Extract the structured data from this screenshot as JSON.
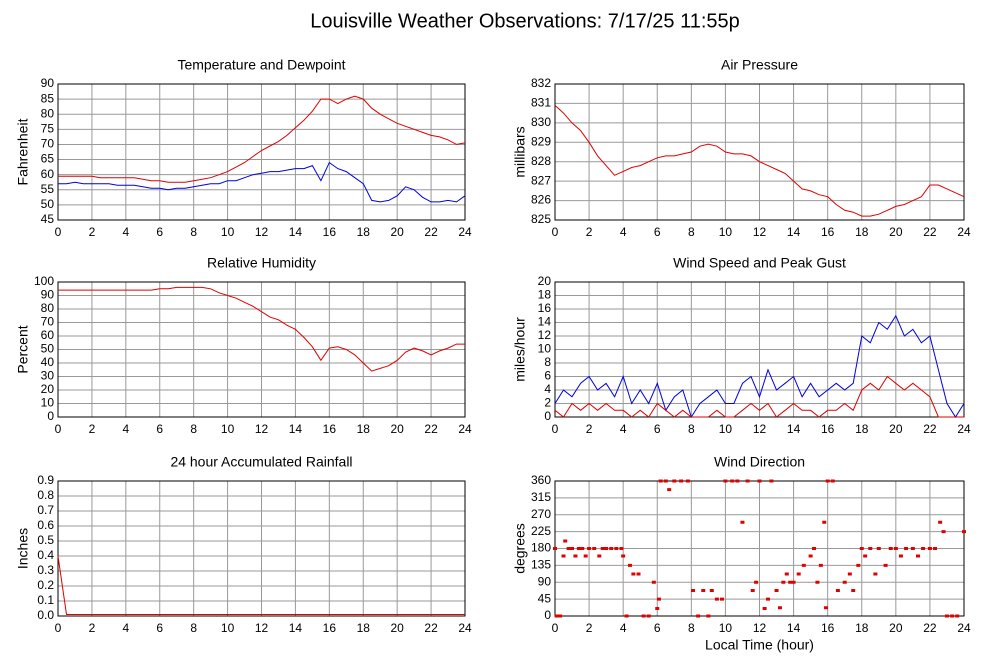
{
  "title": "Louisville Weather Observations: 7/17/25 11:55p",
  "chart_data": [
    {
      "type": "line",
      "title": "Temperature and Dewpoint",
      "ylabel": "Fahrenheit",
      "x": [
        0,
        0.5,
        1,
        1.5,
        2,
        2.5,
        3,
        3.5,
        4,
        4.5,
        5,
        5.5,
        6,
        6.5,
        7,
        7.5,
        8,
        8.5,
        9,
        9.5,
        10,
        10.5,
        11,
        11.5,
        12,
        12.5,
        13,
        13.5,
        14,
        14.5,
        15,
        15.5,
        16,
        16.5,
        17,
        17.5,
        18,
        18.5,
        19,
        19.5,
        20,
        20.5,
        21,
        21.5,
        22,
        22.5,
        23,
        23.5,
        24
      ],
      "series": [
        {
          "name": "Temperature",
          "color": "#e00000",
          "values": [
            59.5,
            59.5,
            59.5,
            59.5,
            59.5,
            59,
            59,
            59,
            59,
            59,
            58.5,
            58,
            58,
            57.5,
            57.5,
            57.5,
            58,
            58.5,
            59,
            60,
            61,
            62.5,
            64,
            66,
            68,
            69.5,
            71,
            73,
            75.5,
            78,
            81,
            85,
            85,
            83.5,
            85,
            86,
            85,
            82,
            80,
            78.5,
            77,
            76,
            75,
            74,
            73,
            72.5,
            71.5,
            70,
            70.5
          ]
        },
        {
          "name": "Dewpoint",
          "color": "#0000e0",
          "values": [
            57,
            57,
            57.5,
            57,
            57,
            57,
            57,
            56.5,
            56.5,
            56.5,
            56,
            55.5,
            55.5,
            55,
            55.5,
            55.5,
            56,
            56.5,
            57,
            57,
            58,
            58,
            59,
            60,
            60.5,
            61,
            61,
            61.5,
            62,
            62,
            63,
            58,
            64,
            62,
            61,
            59,
            57,
            51.5,
            51,
            51.5,
            53,
            56,
            55,
            52.5,
            51,
            51,
            51.5,
            51,
            53
          ]
        }
      ],
      "xlim": [
        0,
        24
      ],
      "xticks": [
        0,
        2,
        4,
        6,
        8,
        10,
        12,
        14,
        16,
        18,
        20,
        22,
        24
      ],
      "ylim": [
        45,
        90
      ],
      "yticks": [
        45,
        50,
        55,
        60,
        65,
        70,
        75,
        80,
        85,
        90
      ]
    },
    {
      "type": "line",
      "title": "Air Pressure",
      "ylabel": "millibars",
      "x": [
        0,
        0.5,
        1,
        1.5,
        2,
        2.5,
        3,
        3.5,
        4,
        4.5,
        5,
        5.5,
        6,
        6.5,
        7,
        7.5,
        8,
        8.5,
        9,
        9.5,
        10,
        10.5,
        11,
        11.5,
        12,
        12.5,
        13,
        13.5,
        14,
        14.5,
        15,
        15.5,
        16,
        16.5,
        17,
        17.5,
        18,
        18.5,
        19,
        19.5,
        20,
        20.5,
        21,
        21.5,
        22,
        22.5,
        23,
        23.5,
        24
      ],
      "series": [
        {
          "name": "Pressure",
          "color": "#e00000",
          "values": [
            830.9,
            830.5,
            830,
            829.6,
            829,
            828.3,
            827.8,
            827.3,
            827.5,
            827.7,
            827.8,
            828,
            828.2,
            828.3,
            828.3,
            828.4,
            828.5,
            828.8,
            828.9,
            828.8,
            828.5,
            828.4,
            828.4,
            828.3,
            828,
            827.8,
            827.6,
            827.4,
            827,
            826.6,
            826.5,
            826.3,
            826.2,
            825.8,
            825.5,
            825.4,
            825.2,
            825.2,
            825.3,
            825.5,
            825.7,
            825.8,
            826,
            826.2,
            826.8,
            826.8,
            826.6,
            826.4,
            826.2
          ]
        }
      ],
      "xlim": [
        0,
        24
      ],
      "xticks": [
        0,
        2,
        4,
        6,
        8,
        10,
        12,
        14,
        16,
        18,
        20,
        22,
        24
      ],
      "ylim": [
        825,
        832
      ],
      "yticks": [
        825,
        826,
        827,
        828,
        829,
        830,
        831,
        832
      ]
    },
    {
      "type": "line",
      "title": "Relative Humidity",
      "ylabel": "Percent",
      "x": [
        0,
        0.5,
        1,
        1.5,
        2,
        2.5,
        3,
        3.5,
        4,
        4.5,
        5,
        5.5,
        6,
        6.5,
        7,
        7.5,
        8,
        8.5,
        9,
        9.5,
        10,
        10.5,
        11,
        11.5,
        12,
        12.5,
        13,
        13.5,
        14,
        14.5,
        15,
        15.5,
        16,
        16.5,
        17,
        17.5,
        18,
        18.5,
        19,
        19.5,
        20,
        20.5,
        21,
        21.5,
        22,
        22.5,
        23,
        23.5,
        24
      ],
      "series": [
        {
          "name": "Humidity",
          "color": "#e00000",
          "values": [
            94,
            94,
            94,
            94,
            94,
            94,
            94,
            94,
            94,
            94,
            94,
            94,
            95,
            95,
            96,
            96,
            96,
            96,
            95,
            92,
            90,
            88,
            85,
            82,
            78,
            74,
            72,
            68,
            65,
            59,
            52,
            42,
            51,
            52,
            50,
            46,
            40,
            34,
            36,
            38,
            42,
            48,
            51,
            49,
            46,
            49,
            51,
            54,
            54
          ]
        }
      ],
      "xlim": [
        0,
        24
      ],
      "xticks": [
        0,
        2,
        4,
        6,
        8,
        10,
        12,
        14,
        16,
        18,
        20,
        22,
        24
      ],
      "ylim": [
        0,
        100
      ],
      "yticks": [
        0,
        10,
        20,
        30,
        40,
        50,
        60,
        70,
        80,
        90,
        100
      ]
    },
    {
      "type": "line",
      "title": "Wind Speed and Peak Gust",
      "ylabel": "miles/hour",
      "x": [
        0,
        0.5,
        1,
        1.5,
        2,
        2.5,
        3,
        3.5,
        4,
        4.5,
        5,
        5.5,
        6,
        6.5,
        7,
        7.5,
        8,
        8.5,
        9,
        9.5,
        10,
        10.5,
        11,
        11.5,
        12,
        12.5,
        13,
        13.5,
        14,
        14.5,
        15,
        15.5,
        16,
        16.5,
        17,
        17.5,
        18,
        18.5,
        19,
        19.5,
        20,
        20.5,
        21,
        21.5,
        22,
        22.5,
        23,
        23.5,
        24
      ],
      "series": [
        {
          "name": "Peak Gust",
          "color": "#0000e0",
          "values": [
            2,
            4,
            3,
            5,
            6,
            4,
            5,
            3,
            6,
            2,
            4,
            2,
            5,
            1,
            3,
            4,
            0,
            2,
            3,
            4,
            2,
            2,
            5,
            6,
            3,
            7,
            4,
            5,
            6,
            3,
            5,
            3,
            4,
            5,
            4,
            5,
            12,
            11,
            14,
            13,
            15,
            12,
            13,
            11,
            12,
            7,
            2,
            0,
            2
          ]
        },
        {
          "name": "Wind Speed",
          "color": "#e00000",
          "values": [
            1,
            0,
            2,
            1,
            2,
            1,
            2,
            1,
            1,
            0,
            1,
            0,
            2,
            1,
            0,
            1,
            0,
            0,
            0,
            1,
            0,
            0,
            1,
            2,
            1,
            2,
            0,
            1,
            2,
            1,
            1,
            0,
            1,
            1,
            2,
            1,
            4,
            5,
            4,
            6,
            5,
            4,
            5,
            4,
            3,
            0,
            0,
            0,
            0
          ]
        }
      ],
      "xlim": [
        0,
        24
      ],
      "xticks": [
        0,
        2,
        4,
        6,
        8,
        10,
        12,
        14,
        16,
        18,
        20,
        22,
        24
      ],
      "ylim": [
        0,
        20
      ],
      "yticks": [
        0,
        2,
        4,
        6,
        8,
        10,
        12,
        14,
        16,
        18,
        20
      ]
    },
    {
      "type": "line",
      "title": "24 hour Accumulated Rainfall",
      "ylabel": "Inches",
      "x": [
        0,
        0.5,
        1,
        1.5,
        2,
        2.5,
        3,
        3.5,
        4,
        4.5,
        5,
        5.5,
        6,
        6.5,
        7,
        7.5,
        8,
        8.5,
        9,
        9.5,
        10,
        10.5,
        11,
        11.5,
        12,
        12.5,
        13,
        13.5,
        14,
        14.5,
        15,
        15.5,
        16,
        16.5,
        17,
        17.5,
        18,
        18.5,
        19,
        19.5,
        20,
        20.5,
        21,
        21.5,
        22,
        22.5,
        23,
        23.5,
        24
      ],
      "series": [
        {
          "name": "Rainfall",
          "color": "#e00000",
          "values": [
            0.4,
            0.01,
            0.01,
            0.01,
            0.01,
            0.01,
            0.01,
            0.01,
            0.01,
            0.01,
            0.01,
            0.01,
            0.01,
            0.01,
            0.01,
            0.01,
            0.01,
            0.01,
            0.01,
            0.01,
            0.01,
            0.01,
            0.01,
            0.01,
            0.01,
            0.01,
            0.01,
            0.01,
            0.01,
            0.01,
            0.01,
            0.01,
            0.01,
            0.01,
            0.01,
            0.01,
            0.01,
            0.01,
            0.01,
            0.01,
            0.01,
            0.01,
            0.01,
            0.01,
            0.01,
            0.01,
            0.01,
            0.01,
            0.01
          ]
        }
      ],
      "xlim": [
        0,
        24
      ],
      "xticks": [
        0,
        2,
        4,
        6,
        8,
        10,
        12,
        14,
        16,
        18,
        20,
        22,
        24
      ],
      "ylim": [
        0,
        0.9
      ],
      "yticks": [
        {
          "value": 0,
          "label": "0.0"
        },
        0.1,
        0.2,
        0.3,
        0.4,
        0.5,
        0.6,
        0.7,
        0.8,
        0.9
      ]
    },
    {
      "type": "scatter",
      "title": "Wind Direction",
      "ylabel": "degrees",
      "xlabel": "Local Time (hour)",
      "color": "#e00000",
      "x": [
        0,
        0.1,
        0.3,
        0.5,
        0.6,
        0.8,
        1,
        1.2,
        1.4,
        1.6,
        1.8,
        2,
        2.3,
        2.6,
        2.8,
        3,
        3.3,
        3.6,
        3.9,
        4,
        4.2,
        4.4,
        4.6,
        4.9,
        5.2,
        5.5,
        5.8,
        6,
        6.1,
        6.2,
        6.5,
        6.7,
        7,
        7.4,
        7.8,
        8.1,
        8.4,
        8.7,
        9,
        9.2,
        9.5,
        9.8,
        10,
        10.4,
        10.7,
        11,
        11.3,
        11.6,
        11.8,
        12,
        12.3,
        12.5,
        12.7,
        13,
        13.2,
        13.4,
        13.6,
        13.8,
        14,
        14.3,
        14.6,
        15,
        15.2,
        15.4,
        15.6,
        15.8,
        15.9,
        16,
        16.3,
        16.6,
        17,
        17.3,
        17.5,
        17.8,
        18,
        18.2,
        18.5,
        18.8,
        19,
        19.4,
        19.7,
        20,
        20.3,
        20.6,
        21,
        21.3,
        21.6,
        22,
        22.3,
        22.6,
        22.8,
        23,
        23.3,
        23.6,
        24
      ],
      "values": [
        180,
        0,
        0,
        160,
        200,
        180,
        180,
        160,
        180,
        180,
        160,
        180,
        180,
        160,
        180,
        180,
        180,
        180,
        180,
        160,
        0,
        135,
        112,
        112,
        0,
        0,
        90,
        20,
        45,
        360,
        360,
        337,
        360,
        360,
        360,
        68,
        0,
        68,
        0,
        68,
        45,
        45,
        360,
        360,
        360,
        250,
        360,
        68,
        90,
        360,
        20,
        45,
        360,
        68,
        22,
        90,
        112,
        90,
        90,
        112,
        135,
        160,
        180,
        90,
        135,
        250,
        22,
        360,
        360,
        68,
        90,
        112,
        68,
        135,
        180,
        160,
        180,
        112,
        180,
        135,
        180,
        180,
        160,
        180,
        180,
        160,
        180,
        180,
        180,
        250,
        225,
        0,
        0,
        0,
        225
      ],
      "xlim": [
        0,
        24
      ],
      "xticks": [
        0,
        2,
        4,
        6,
        8,
        10,
        12,
        14,
        16,
        18,
        20,
        22,
        24
      ],
      "ylim": [
        0,
        360
      ],
      "yticks": [
        0,
        45,
        90,
        135,
        180,
        225,
        270,
        315,
        360
      ]
    }
  ]
}
